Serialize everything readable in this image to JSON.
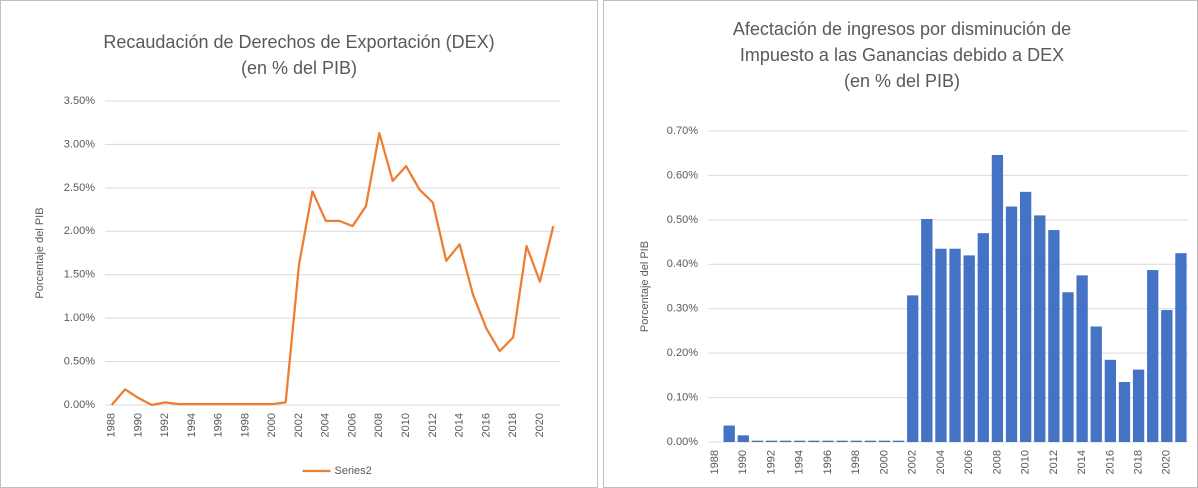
{
  "chart_data": [
    {
      "type": "line",
      "title": [
        "Recaudación de Derechos de Exportación (DEX)",
        "(en % del PIB)"
      ],
      "y_label": "Porcentaje del PIB",
      "categories": [
        "1988",
        null,
        "1990",
        null,
        "1992",
        null,
        "1994",
        null,
        "1996",
        null,
        "1998",
        null,
        "2000",
        null,
        "2002",
        null,
        "2004",
        null,
        "2006",
        null,
        "2008",
        null,
        "2010",
        null,
        "2012",
        null,
        "2014",
        null,
        "2016",
        null,
        "2018",
        null,
        "2020",
        null
      ],
      "series": [
        {
          "name": "Series2",
          "color": "#ed7d31",
          "values": [
            0.0,
            0.18,
            0.08,
            0.0,
            0.03,
            0.01,
            0.01,
            0.01,
            0.01,
            0.01,
            0.01,
            0.01,
            0.01,
            0.03,
            1.62,
            2.46,
            2.12,
            2.12,
            2.06,
            2.29,
            3.13,
            2.58,
            2.75,
            2.48,
            2.33,
            1.66,
            1.85,
            1.27,
            0.88,
            0.62,
            0.78,
            1.83,
            1.42,
            2.06
          ]
        }
      ],
      "ylim": [
        0,
        3.5
      ],
      "yticks": [
        {
          "value": 0,
          "label": "0.00%"
        },
        {
          "value": 0.5,
          "label": "0.50%"
        },
        {
          "value": 1,
          "label": "1.00%"
        },
        {
          "value": 1.5,
          "label": "1.50%"
        },
        {
          "value": 2,
          "label": "2.00%"
        },
        {
          "value": 2.5,
          "label": "2.50%"
        },
        {
          "value": 3,
          "label": "3.00%"
        },
        {
          "value": 3.5,
          "label": "3.50%"
        }
      ],
      "grid": true,
      "legend": "bottom"
    },
    {
      "type": "bar",
      "title": [
        "Afectación de ingresos por disminución de",
        "Impuesto a las Ganancias debido a DEX",
        "(en % del PIB)"
      ],
      "y_label": "Porcentaje del PIB",
      "categories": [
        "1988",
        null,
        "1990",
        null,
        "1992",
        null,
        "1994",
        null,
        "1996",
        null,
        "1998",
        null,
        "2000",
        null,
        "2002",
        null,
        "2004",
        null,
        "2006",
        null,
        "2008",
        null,
        "2010",
        null,
        "2012",
        null,
        "2014",
        null,
        "2016",
        null,
        "2018",
        null,
        "2020",
        null
      ],
      "values": [
        0.0,
        0.037,
        0.015,
        0.003,
        0.003,
        0.003,
        0.003,
        0.003,
        0.003,
        0.003,
        0.003,
        0.003,
        0.003,
        0.003,
        0.33,
        0.502,
        0.435,
        0.435,
        0.42,
        0.47,
        0.646,
        0.53,
        0.563,
        0.51,
        0.477,
        0.337,
        0.375,
        0.26,
        0.185,
        0.135,
        0.163,
        0.387,
        0.297,
        0.425
      ],
      "color": "#4472c4",
      "ylim": [
        0,
        0.7
      ],
      "yticks": [
        {
          "value": 0,
          "label": "0.00%"
        },
        {
          "value": 0.1,
          "label": "0.10%"
        },
        {
          "value": 0.2,
          "label": "0.20%"
        },
        {
          "value": 0.3,
          "label": "0.30%"
        },
        {
          "value": 0.4,
          "label": "0.40%"
        },
        {
          "value": 0.5,
          "label": "0.50%"
        },
        {
          "value": 0.6,
          "label": "0.60%"
        },
        {
          "value": 0.7,
          "label": "0.70%"
        }
      ],
      "grid": true
    }
  ]
}
